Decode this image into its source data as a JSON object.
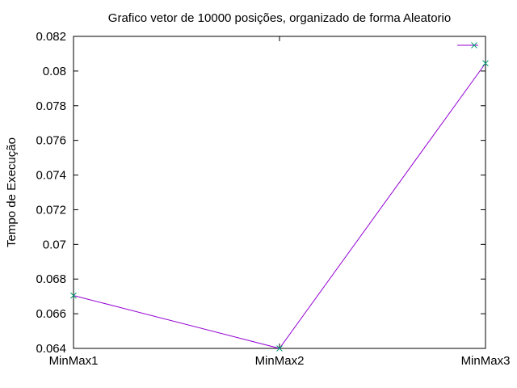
{
  "chart_data": {
    "type": "line",
    "title": "Grafico vetor de 10000 posições, organizado de forma Aleatorio",
    "xlabel": "",
    "ylabel": "Tempo de Execução",
    "categories": [
      "MinMax1",
      "MinMax2",
      "MinMax3"
    ],
    "ylim": [
      0.064,
      0.082
    ],
    "yticks": [
      0.064,
      0.066,
      0.068,
      0.07,
      0.072,
      0.074,
      0.076,
      0.078,
      0.08,
      0.082
    ],
    "grid": false,
    "legend": "top-right",
    "series": [
      {
        "values": [
          0.06705,
          0.064,
          0.08045
        ],
        "line_color": "#9400d3",
        "marker": "x",
        "marker_color": "#009e73"
      }
    ]
  }
}
